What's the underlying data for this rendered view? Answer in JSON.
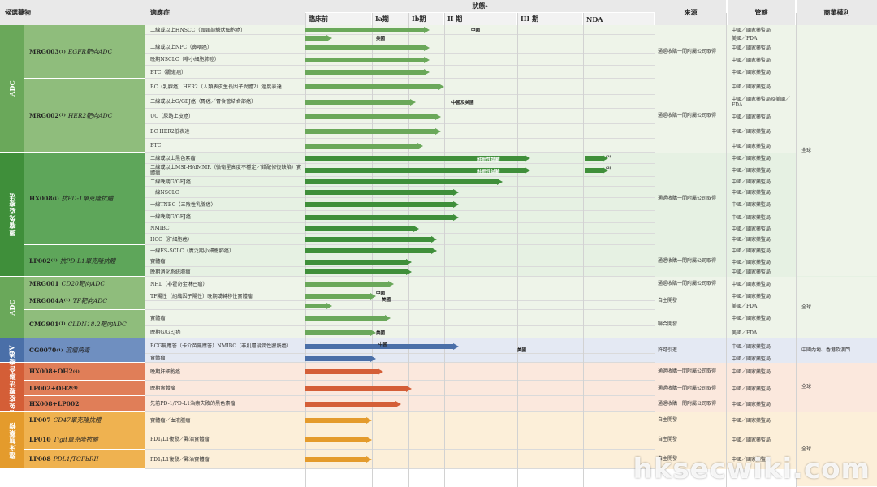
{
  "header": {
    "col_candidate": "候選藥物",
    "col_indication": "適應症",
    "col_status": "狀態",
    "status_sup": "a",
    "col_source": "來源",
    "col_regulator": "管轄",
    "col_rights": "商業權利",
    "phases": [
      "臨床前",
      "Ia期",
      "Ib期",
      "II 期",
      "III 期",
      "NDA"
    ]
  },
  "categories": [
    {
      "label": "ADC",
      "color": "#6aa85a"
    },
    {
      "label": "腫瘤免疫療法",
      "color": "#3f8f3a"
    },
    {
      "label": "ADC",
      "color": "#6aa85a"
    },
    {
      "label": "OV",
      "color": "#4a6fa8"
    },
    {
      "label": "腫瘤免疫療法聯合療法",
      "color": "#d45e37"
    },
    {
      "label": "臨床前藥物",
      "color": "#e49b2c"
    }
  ],
  "candidates": [
    {
      "name": "MRG003",
      "sup": "(1)",
      "target": "EGFR靶向ADC"
    },
    {
      "name": "MRG002",
      "sup": "(1)",
      "target": "HER2靶向ADC"
    },
    {
      "name": "HX008",
      "sup": "(1)",
      "target": "抗PD-1單克隆抗體"
    },
    {
      "name": "LP002",
      "sup": "(1)",
      "target": "抗PD-L1單克隆抗體"
    },
    {
      "name": "MRG001",
      "sup": "",
      "target": "CD20靶向ADC"
    },
    {
      "name": "MRG004A",
      "sup": "(1)",
      "target": "TF靶向ADC"
    },
    {
      "name": "CMG901",
      "sup": "(1)",
      "target": "CLDN18.2靶向ADC"
    },
    {
      "name": "CG0070",
      "sup": "(1)",
      "target": "溶瘤病毒"
    },
    {
      "name": "HX008+OH2",
      "sup": "(4)",
      "target": ""
    },
    {
      "name": "LP002+OH2",
      "sup": "(4)",
      "target": ""
    },
    {
      "name": "HX008+LP002",
      "sup": "",
      "target": ""
    },
    {
      "name": "LP007",
      "sup": "",
      "target": "CD47單克隆抗體"
    },
    {
      "name": "LP010",
      "sup": "",
      "target": "Tigit單克隆抗體"
    },
    {
      "name": "LP008",
      "sup": "",
      "target": "PDL1/TGFbRII"
    }
  ],
  "indications": [
    "二線或以上HNSCC（頭頸部鱗狀細胞癌）",
    "",
    "二線或以上NPC（鼻咽癌）",
    "晚期NSCLC（非小細胞肺癌）",
    "BTC（膽道癌）",
    "BC（乳腺癌）HER2（人類表皮生長因子受體2）過度表達",
    "二線或以上G/GEJ癌（胃癌／胃食管結合部癌）",
    "UC（尿路上皮癌）",
    "BC HER2低表達",
    "BTC",
    "二線或以上黑色素瘤",
    "二線或以上MSI-H/dMMR（微衛星高度不穩定／錯配修復缺陷）實體瘤",
    "二線晚期G/GEJ癌",
    "一線NSCLC",
    "一線TNBC（三陰性乳腺癌）",
    "一線晚期G/GEJ癌",
    "NMIBC",
    "HCC（肝細胞癌）",
    "一線ES-SCLC（廣泛期小細胞肺癌）",
    "實體瘤",
    "晚期消化系統腫瘤",
    "NHL（非霍奇金淋巴瘤）",
    "TF陽性（組織因子陽性）晚期或轉移性實體瘤",
    "",
    "實體瘤",
    "晚期G/GEJ癌",
    "BCG無應答（卡介苗無應答）NMIBC（非肌層浸潤性膀胱癌）",
    "實體瘤",
    "晚期肝細胞癌",
    "晚期實體瘤",
    "先前PD-1/PD-L1治療失敗的黑色素瘤",
    "實體瘤／血液腫瘤",
    "PD1/L1復發／難治實體瘤",
    "PD1/L1復發／難治實體瘤"
  ],
  "bar_labels": {
    "china": "中國",
    "us": "美國",
    "china_us": "中國及美國",
    "registrational": "註冊性試驗",
    "nda_sup": "(2)"
  },
  "progress": {
    "note": "phase reached, fraction across columns (0=preclinical start, 6=end of NDA)",
    "rows": [
      2.6,
      0.4,
      2.6,
      2.6,
      2.6,
      3.0,
      2.2,
      2.9,
      2.9,
      2.4,
      4.2,
      4.2,
      3.8,
      3.2,
      3.2,
      3.2,
      2.3,
      2.8,
      2.8,
      2.1,
      2.1,
      1.6,
      1.1,
      0.4,
      1.5,
      1.1,
      3.2,
      1.1,
      1.3,
      2.1,
      1.8,
      1.0,
      1.0,
      1.0
    ]
  },
  "sources": [
    "通過收購一間附屬公司取得",
    "通過收購一間附屬公司取得",
    "通過收購一間附屬公司取得",
    "通過收購一間附屬公司取得",
    "通過收購一間附屬公司取得",
    "自主開發",
    "聯合開發",
    "許可引進",
    "通過收購一間附屬公司取得",
    "通過收購一間附屬公司取得",
    "通過收購一間附屬公司取得",
    "自主開發",
    "自主開發",
    "自主開發"
  ],
  "regulators": {
    "nmpa": "中國／國家藥監局",
    "fda": "美國／FDA",
    "nmpa_fda": "中國／國家藥監局及美國／FDA"
  },
  "rights": {
    "global": "全球",
    "greater_china": "中國內地、香港及澳門"
  },
  "watermark": "hksecwiki.com"
}
